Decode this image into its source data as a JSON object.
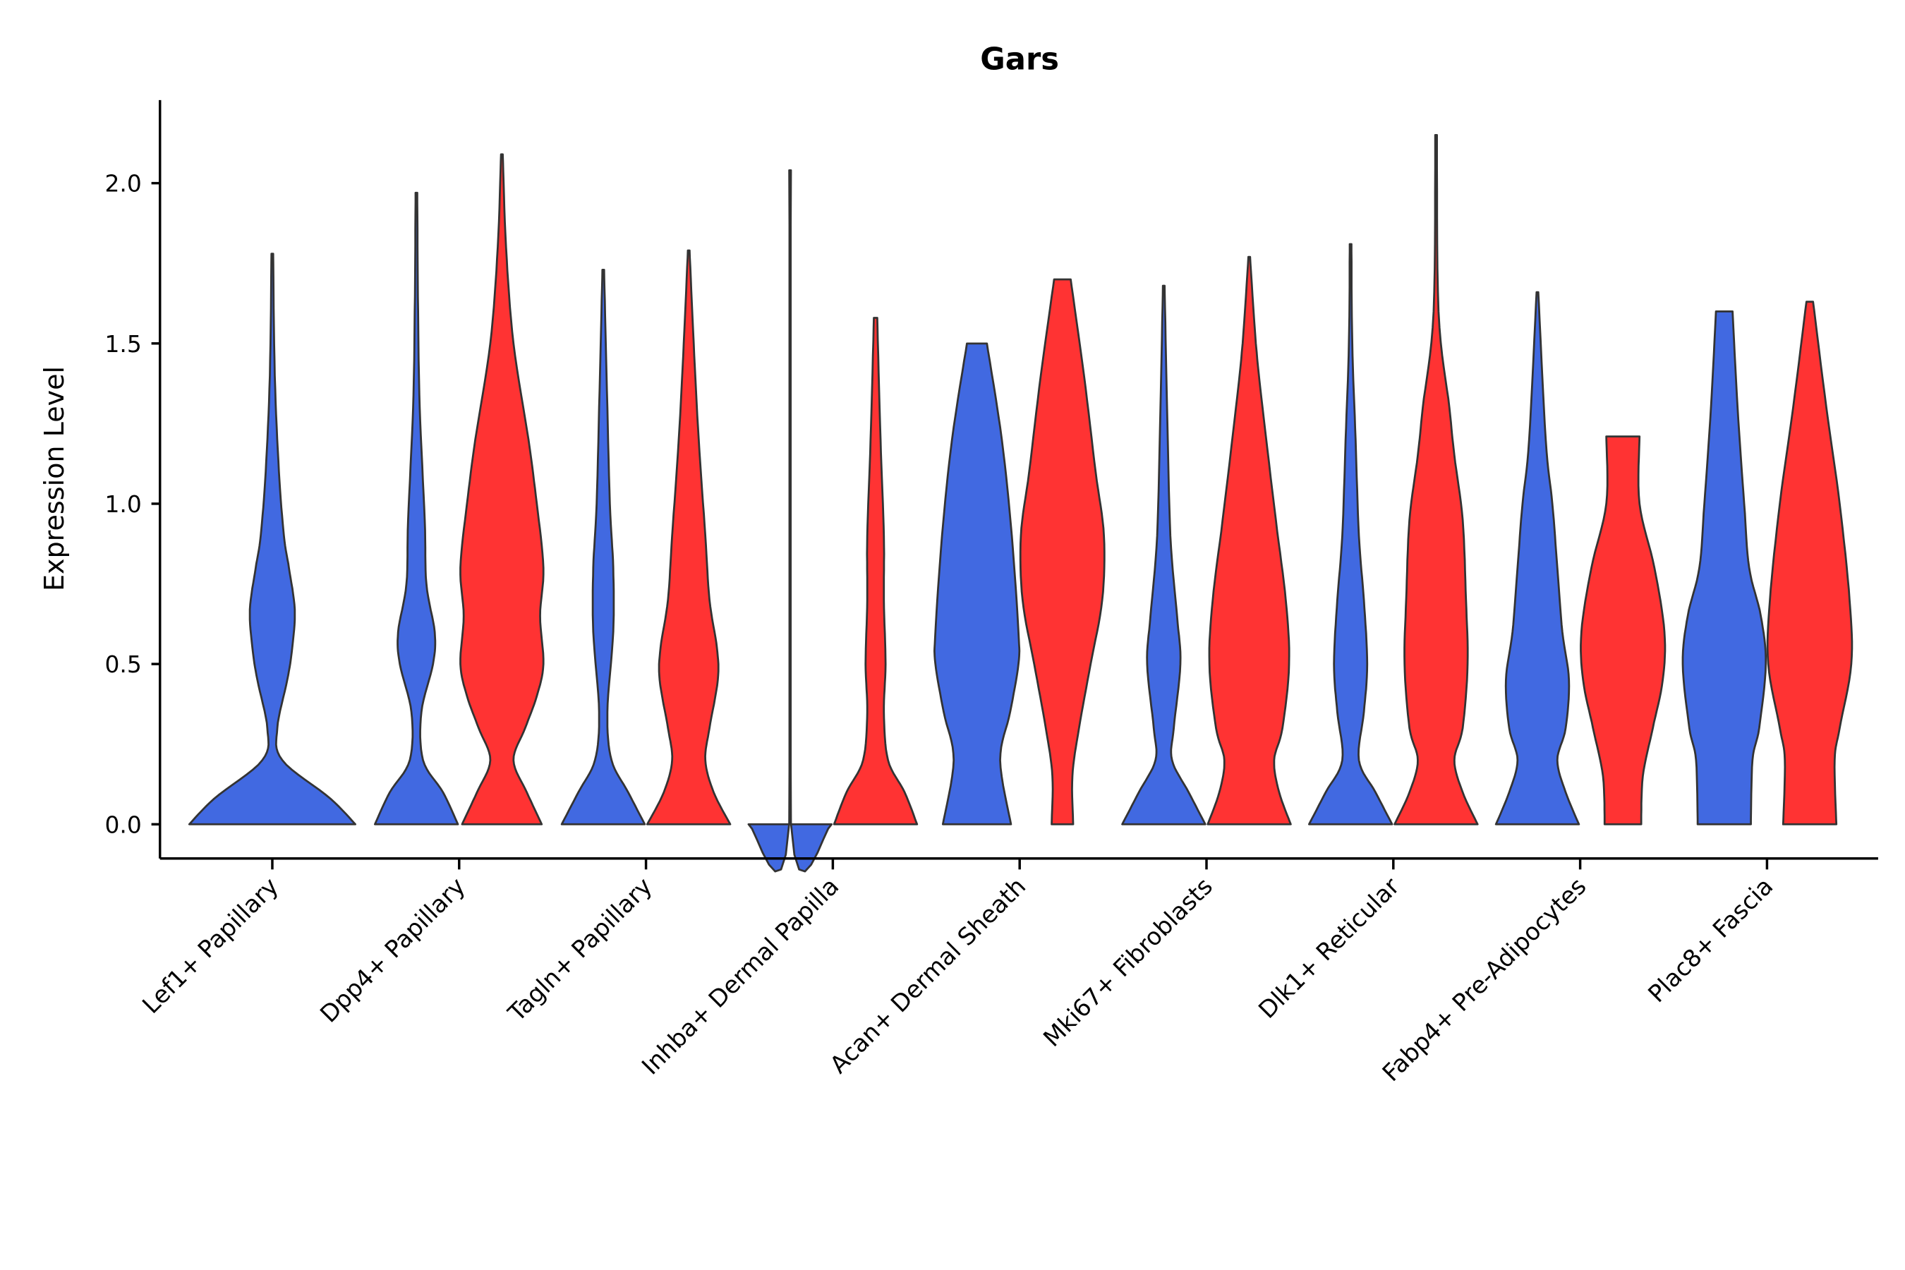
{
  "chart_data": {
    "type": "violin",
    "title": "Gars",
    "xlabel": "",
    "ylabel": "Expression Level",
    "ylim": [
      -0.11,
      2.26
    ],
    "yticks": [
      0.0,
      0.5,
      1.0,
      1.5,
      2.0
    ],
    "ytick_labels": [
      "0.0",
      "0.5",
      "1.0",
      "1.5",
      "2.0"
    ],
    "grid": false,
    "colors": {
      "blue": "#4169E1",
      "red": "#FF3333",
      "outline": "#333333"
    },
    "categories": [
      "Lef1+ Papillary",
      "Dpp4+ Papillary",
      "Tagln+ Papillary",
      "Inhba+ Dermal Papilla",
      "Acan+ Dermal Sheath",
      "Mki67+ Fibroblasts",
      "Dlk1+ Reticular",
      "Fabp4+ Pre-Adipocytes",
      "Plac8+ Fascia"
    ],
    "violins": [
      {
        "category": 0,
        "group": "blue",
        "offset": 0,
        "max": 1.78,
        "density": [
          [
            0,
            1.0
          ],
          [
            0.08,
            0.7
          ],
          [
            0.2,
            0.12
          ],
          [
            0.3,
            0.06
          ],
          [
            0.45,
            0.18
          ],
          [
            0.55,
            0.24
          ],
          [
            0.67,
            0.27
          ],
          [
            0.8,
            0.2
          ],
          [
            0.9,
            0.14
          ],
          [
            1.1,
            0.08
          ],
          [
            1.4,
            0.03
          ],
          [
            1.78,
            0.01
          ]
        ]
      },
      {
        "category": 1,
        "group": "blue",
        "offset": -1,
        "max": 1.97,
        "density": [
          [
            0,
            0.5
          ],
          [
            0.1,
            0.32
          ],
          [
            0.2,
            0.08
          ],
          [
            0.35,
            0.06
          ],
          [
            0.5,
            0.2
          ],
          [
            0.6,
            0.22
          ],
          [
            0.75,
            0.12
          ],
          [
            0.95,
            0.1
          ],
          [
            1.3,
            0.04
          ],
          [
            1.6,
            0.02
          ],
          [
            1.97,
            0.01
          ]
        ]
      },
      {
        "category": 1,
        "group": "red",
        "offset": 1,
        "max": 2.09,
        "density": [
          [
            0,
            0.48
          ],
          [
            0.1,
            0.3
          ],
          [
            0.2,
            0.14
          ],
          [
            0.3,
            0.28
          ],
          [
            0.4,
            0.42
          ],
          [
            0.5,
            0.5
          ],
          [
            0.65,
            0.46
          ],
          [
            0.8,
            0.5
          ],
          [
            1.0,
            0.42
          ],
          [
            1.2,
            0.32
          ],
          [
            1.5,
            0.14
          ],
          [
            1.8,
            0.05
          ],
          [
            2.09,
            0.01
          ]
        ]
      },
      {
        "category": 2,
        "group": "blue",
        "offset": -1,
        "max": 1.73,
        "density": [
          [
            0,
            0.5
          ],
          [
            0.1,
            0.3
          ],
          [
            0.2,
            0.1
          ],
          [
            0.35,
            0.05
          ],
          [
            0.6,
            0.12
          ],
          [
            0.8,
            0.12
          ],
          [
            1.0,
            0.08
          ],
          [
            1.4,
            0.04
          ],
          [
            1.73,
            0.01
          ]
        ]
      },
      {
        "category": 2,
        "group": "red",
        "offset": 1,
        "max": 1.79,
        "density": [
          [
            0,
            0.5
          ],
          [
            0.1,
            0.3
          ],
          [
            0.2,
            0.2
          ],
          [
            0.3,
            0.25
          ],
          [
            0.45,
            0.35
          ],
          [
            0.55,
            0.34
          ],
          [
            0.7,
            0.25
          ],
          [
            0.9,
            0.2
          ],
          [
            1.2,
            0.12
          ],
          [
            1.5,
            0.06
          ],
          [
            1.79,
            0.01
          ]
        ]
      },
      {
        "category": 3,
        "group": "blue",
        "offset": -1,
        "max": 2.04,
        "density": [
          [
            0,
            0.5
          ],
          [
            0.003,
            0.01
          ],
          [
            2.04,
            0.01
          ]
        ]
      },
      {
        "category": 3,
        "group": "red",
        "offset": 1,
        "max": 1.58,
        "density": [
          [
            0,
            0.5
          ],
          [
            0.1,
            0.35
          ],
          [
            0.2,
            0.15
          ],
          [
            0.35,
            0.1
          ],
          [
            0.5,
            0.12
          ],
          [
            0.7,
            0.1
          ],
          [
            0.9,
            0.1
          ],
          [
            1.2,
            0.06
          ],
          [
            1.58,
            0.02
          ]
        ]
      },
      {
        "category": 4,
        "group": "blue",
        "offset": -1,
        "max": 1.5,
        "density": [
          [
            0,
            0.41
          ],
          [
            0.2,
            0.28
          ],
          [
            0.35,
            0.4
          ],
          [
            0.5,
            0.5
          ],
          [
            0.6,
            0.5
          ],
          [
            0.9,
            0.42
          ],
          [
            1.2,
            0.3
          ],
          [
            1.5,
            0.12
          ]
        ]
      },
      {
        "category": 4,
        "group": "red",
        "offset": 1,
        "max": 1.7,
        "density": [
          [
            0,
            0.13
          ],
          [
            0.15,
            0.12
          ],
          [
            0.3,
            0.2
          ],
          [
            0.5,
            0.34
          ],
          [
            0.7,
            0.48
          ],
          [
            0.9,
            0.5
          ],
          [
            1.1,
            0.4
          ],
          [
            1.4,
            0.26
          ],
          [
            1.7,
            0.1
          ]
        ]
      },
      {
        "category": 5,
        "group": "blue",
        "offset": -1,
        "max": 1.68,
        "density": [
          [
            0,
            0.5
          ],
          [
            0.1,
            0.3
          ],
          [
            0.2,
            0.1
          ],
          [
            0.3,
            0.12
          ],
          [
            0.5,
            0.2
          ],
          [
            0.65,
            0.16
          ],
          [
            0.9,
            0.08
          ],
          [
            1.3,
            0.04
          ],
          [
            1.68,
            0.01
          ]
        ]
      },
      {
        "category": 5,
        "group": "red",
        "offset": 1,
        "max": 1.77,
        "density": [
          [
            0,
            0.5
          ],
          [
            0.1,
            0.36
          ],
          [
            0.2,
            0.3
          ],
          [
            0.3,
            0.4
          ],
          [
            0.5,
            0.48
          ],
          [
            0.7,
            0.44
          ],
          [
            0.95,
            0.32
          ],
          [
            1.3,
            0.16
          ],
          [
            1.5,
            0.08
          ],
          [
            1.77,
            0.01
          ]
        ]
      },
      {
        "category": 6,
        "group": "blue",
        "offset": -1,
        "max": 1.81,
        "density": [
          [
            0,
            0.5
          ],
          [
            0.1,
            0.3
          ],
          [
            0.2,
            0.1
          ],
          [
            0.35,
            0.16
          ],
          [
            0.5,
            0.2
          ],
          [
            0.7,
            0.16
          ],
          [
            0.9,
            0.1
          ],
          [
            1.2,
            0.06
          ],
          [
            1.5,
            0.02
          ],
          [
            1.81,
            0.01
          ]
        ]
      },
      {
        "category": 6,
        "group": "red",
        "offset": 1,
        "max": 2.15,
        "density": [
          [
            0,
            0.5
          ],
          [
            0.1,
            0.32
          ],
          [
            0.2,
            0.22
          ],
          [
            0.3,
            0.32
          ],
          [
            0.5,
            0.38
          ],
          [
            0.7,
            0.36
          ],
          [
            0.95,
            0.32
          ],
          [
            1.15,
            0.22
          ],
          [
            1.3,
            0.16
          ],
          [
            1.6,
            0.03
          ],
          [
            2.15,
            0.01
          ]
        ]
      },
      {
        "category": 7,
        "group": "blue",
        "offset": -1,
        "max": 1.66,
        "density": [
          [
            0,
            0.5
          ],
          [
            0.1,
            0.34
          ],
          [
            0.2,
            0.24
          ],
          [
            0.3,
            0.34
          ],
          [
            0.45,
            0.38
          ],
          [
            0.6,
            0.3
          ],
          [
            0.8,
            0.24
          ],
          [
            1.0,
            0.18
          ],
          [
            1.2,
            0.1
          ],
          [
            1.66,
            0.01
          ]
        ]
      },
      {
        "category": 7,
        "group": "red",
        "offset": 1,
        "max": 1.21,
        "density": [
          [
            0,
            0.22
          ],
          [
            0.15,
            0.24
          ],
          [
            0.3,
            0.36
          ],
          [
            0.45,
            0.48
          ],
          [
            0.6,
            0.5
          ],
          [
            0.8,
            0.38
          ],
          [
            1.0,
            0.2
          ],
          [
            1.21,
            0.2
          ]
        ]
      },
      {
        "category": 8,
        "group": "blue",
        "offset": -1,
        "max": 1.6,
        "density": [
          [
            0,
            0.32
          ],
          [
            0.2,
            0.34
          ],
          [
            0.3,
            0.42
          ],
          [
            0.5,
            0.5
          ],
          [
            0.65,
            0.44
          ],
          [
            0.8,
            0.3
          ],
          [
            1.0,
            0.24
          ],
          [
            1.3,
            0.16
          ],
          [
            1.6,
            0.1
          ]
        ]
      },
      {
        "category": 8,
        "group": "red",
        "offset": 1,
        "max": 1.63,
        "density": [
          [
            0,
            0.32
          ],
          [
            0.2,
            0.3
          ],
          [
            0.3,
            0.36
          ],
          [
            0.5,
            0.5
          ],
          [
            0.7,
            0.48
          ],
          [
            1.0,
            0.36
          ],
          [
            1.3,
            0.2
          ],
          [
            1.63,
            0.04
          ]
        ]
      }
    ]
  }
}
